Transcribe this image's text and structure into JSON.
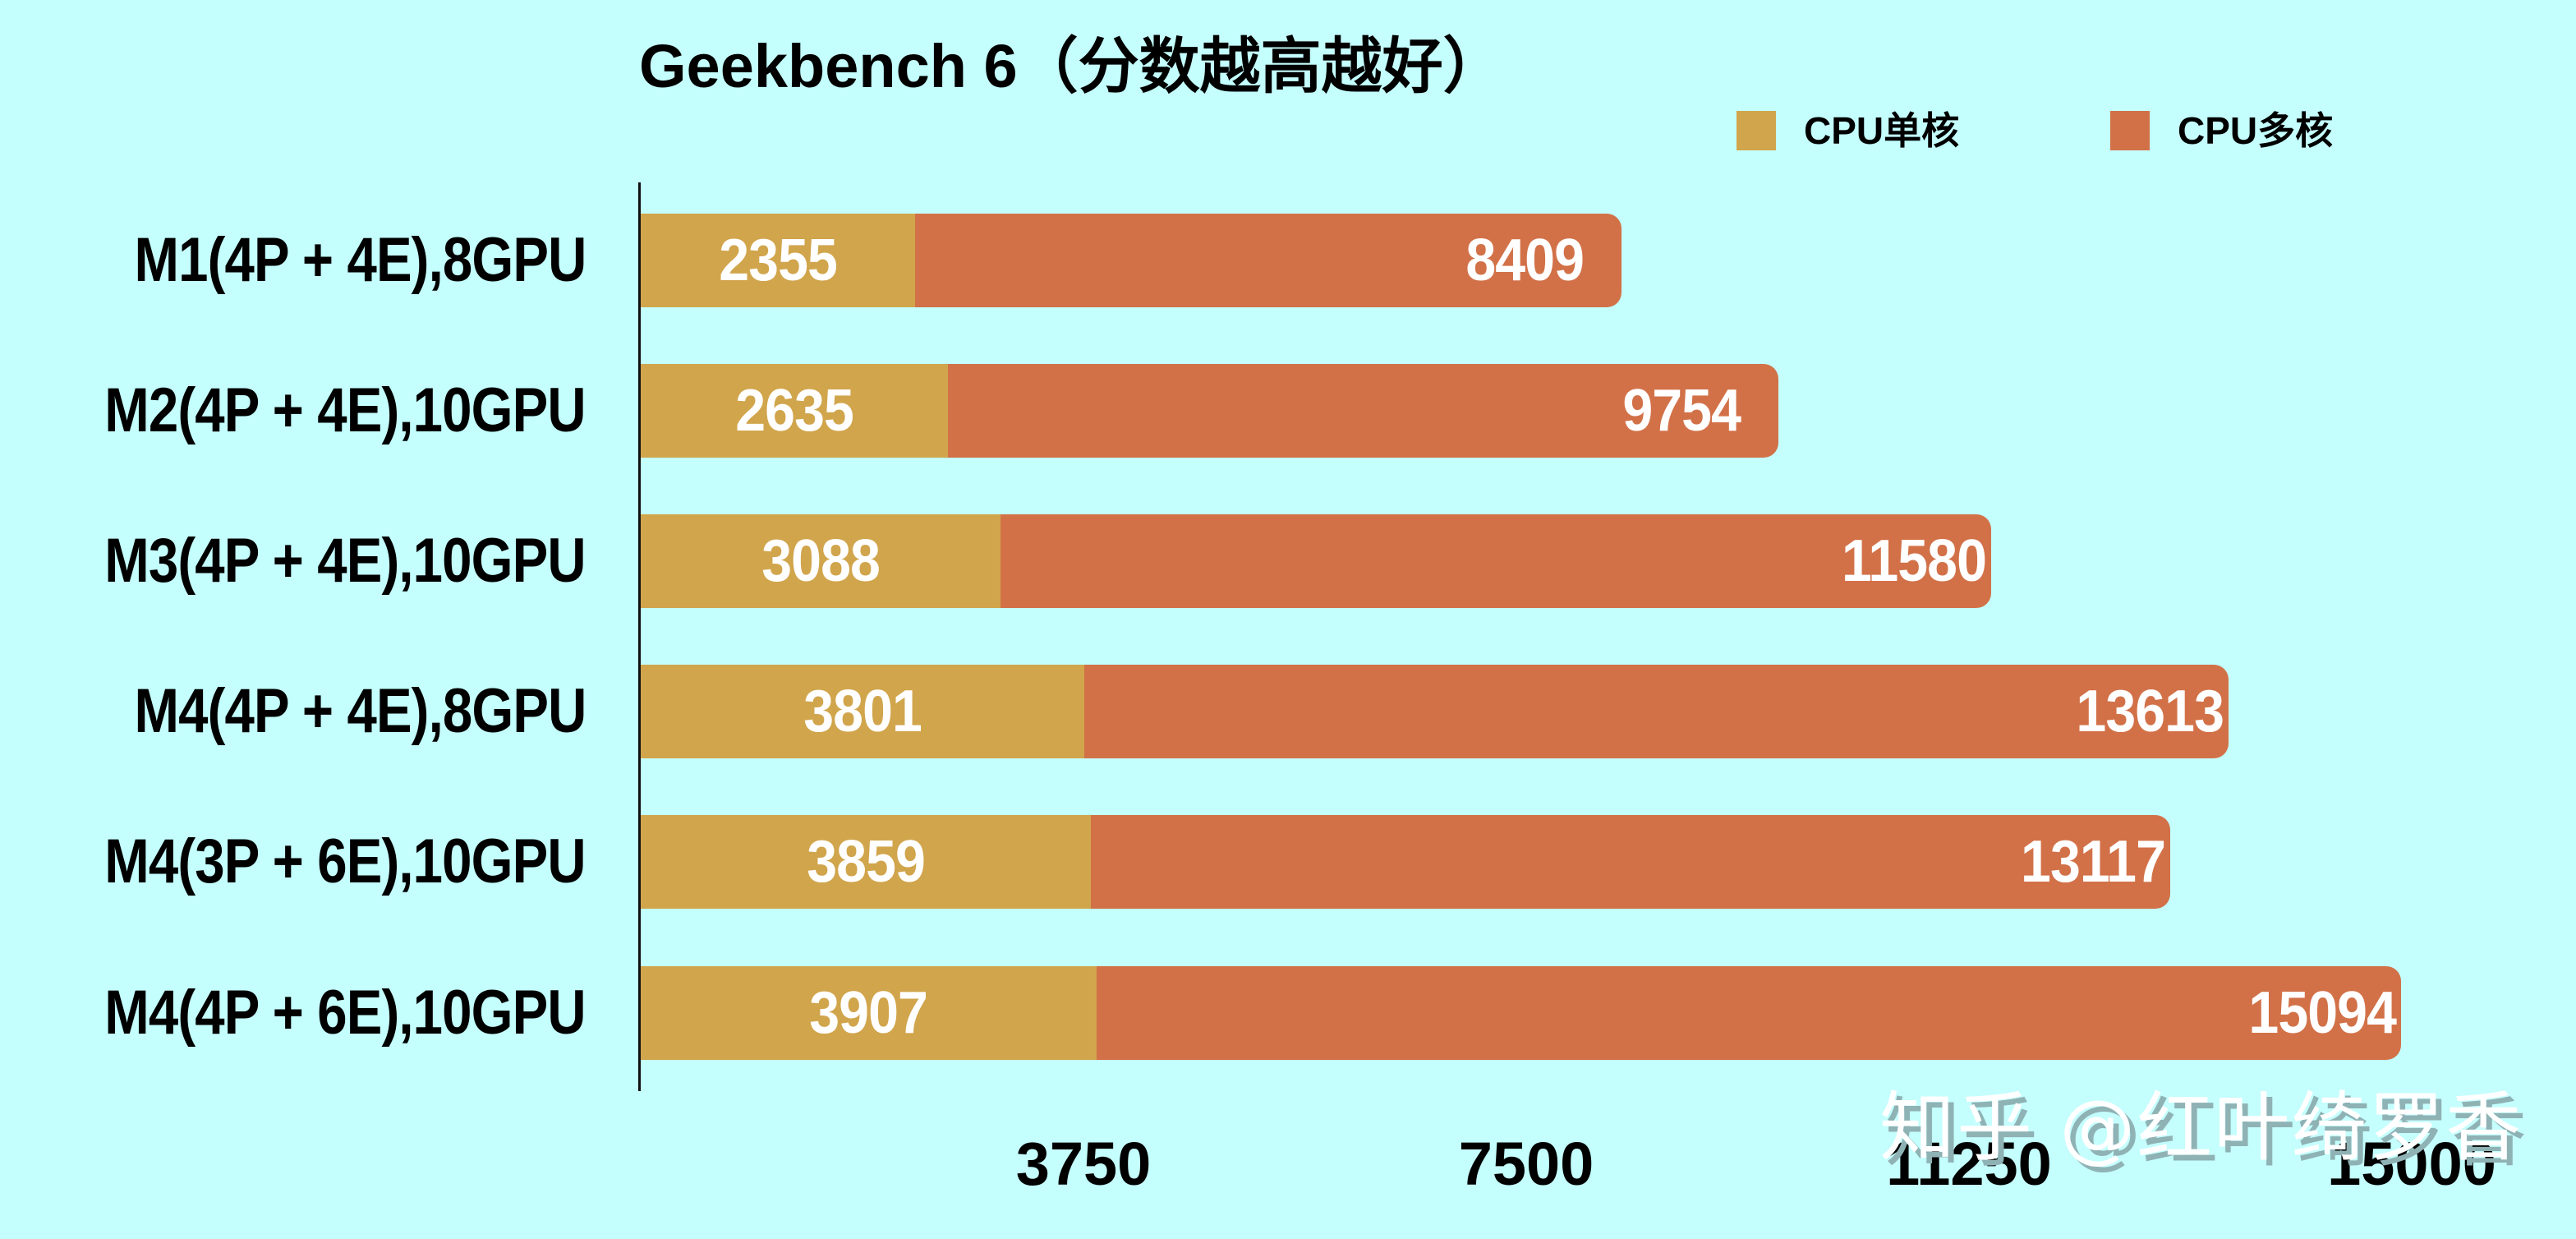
{
  "chart": {
    "title": "Geekbench 6（分数越高越好）",
    "legend": [
      {
        "label": "CPU单核",
        "color": "#D1A54C",
        "swatch_name": "legend-swatch-single-core"
      },
      {
        "label": "CPU多核",
        "color": "#D27148",
        "swatch_name": "legend-swatch-multi-core"
      }
    ],
    "x_ticks": [
      "3750",
      "7500",
      "11250",
      "15000"
    ],
    "watermark": "知乎 @红叶绮罗香",
    "rows": [
      {
        "label": "M1(4P + 4E),8GPU",
        "single": "2355",
        "multi": "8409"
      },
      {
        "label": "M2(4P + 4E),10GPU",
        "single": "2635",
        "multi": "9754"
      },
      {
        "label": "M3(4P + 4E),10GPU",
        "single": "3088",
        "multi": "11580"
      },
      {
        "label": "M4(4P + 4E),8GPU",
        "single": "3801",
        "multi": "13613"
      },
      {
        "label": "M4(3P + 6E),10GPU",
        "single": "3859",
        "multi": "13117"
      },
      {
        "label": "M4(4P + 6E),10GPU",
        "single": "3907",
        "multi": "15094"
      }
    ],
    "colors": {
      "background": "#C4FEFD",
      "single_core": "#D1A54C",
      "multi_core": "#D27148",
      "value_text": "#FFFFFF"
    }
  },
  "chart_data": {
    "type": "bar",
    "orientation": "horizontal",
    "title": "Geekbench 6（分数越高越好）",
    "xlabel": "",
    "ylabel": "",
    "categories": [
      "M1(4P + 4E),8GPU",
      "M2(4P + 4E),10GPU",
      "M3(4P + 4E),10GPU",
      "M4(4P + 4E),8GPU",
      "M4(3P + 6E),10GPU",
      "M4(4P + 6E),10GPU"
    ],
    "series": [
      {
        "name": "CPU单核",
        "color": "#D1A54C",
        "values": [
          2355,
          2635,
          3088,
          3801,
          3859,
          3907
        ]
      },
      {
        "name": "CPU多核",
        "color": "#D27148",
        "values": [
          8409,
          9754,
          11580,
          13613,
          13117,
          15094
        ]
      }
    ],
    "xlim": [
      0,
      15000
    ],
    "x_ticks": [
      3750,
      7500,
      11250,
      15000
    ],
    "grid": false,
    "legend_position": "top-right",
    "overlay": "single-core bar drawn over multi-core bar, both from zero",
    "data_labels": true
  }
}
